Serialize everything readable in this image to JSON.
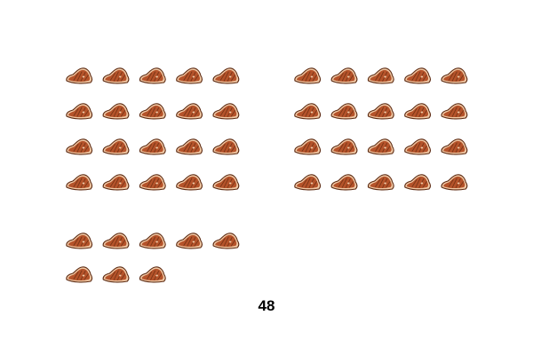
{
  "icon": {
    "name": "steak-icon",
    "outline": "#5c2a12",
    "meat": "#b5532a",
    "meat_dark": "#8a3a1a",
    "fat": "#f1c9a5",
    "grill_mark": "#6b2e12"
  },
  "groups": [
    {
      "name": "group-top-left",
      "count": 20
    },
    {
      "name": "group-top-right",
      "count": 20
    },
    {
      "name": "group-bottom",
      "count": 8
    }
  ],
  "total": "48"
}
